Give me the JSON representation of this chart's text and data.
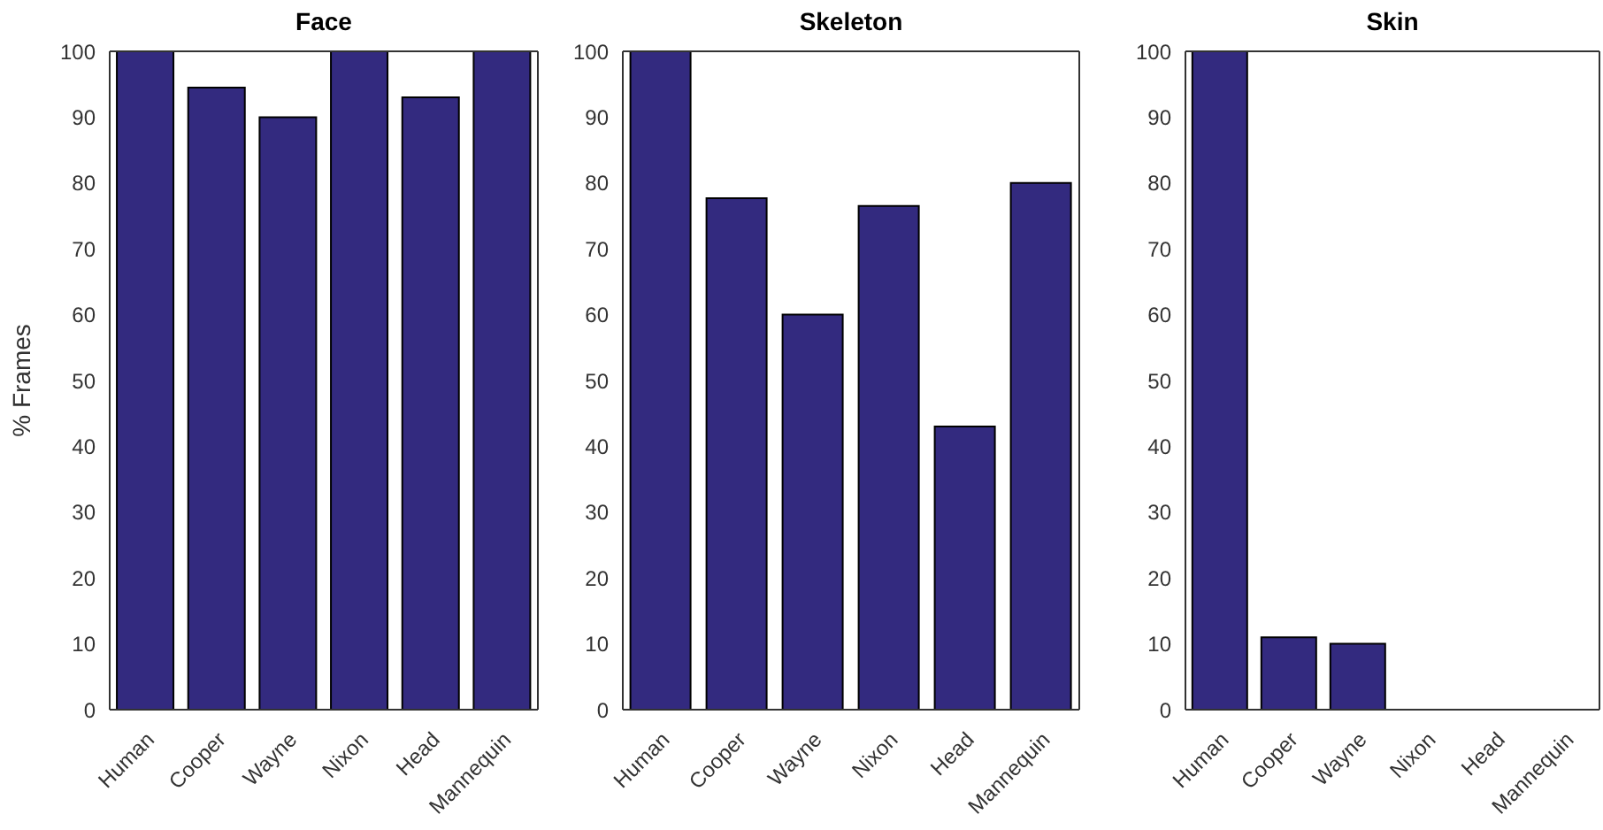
{
  "chart_data": [
    {
      "type": "bar",
      "title": "Face",
      "ylabel": "% Frames",
      "categories": [
        "Human",
        "Cooper",
        "Wayne",
        "Nixon",
        "Head",
        "Mannequin"
      ],
      "values": [
        100,
        94.5,
        90,
        100,
        93,
        100
      ],
      "color": "#332a7f",
      "ylim": [
        0,
        100
      ],
      "yticks": [
        0,
        10,
        20,
        30,
        40,
        50,
        60,
        70,
        80,
        90,
        100
      ]
    },
    {
      "type": "bar",
      "title": "Skeleton",
      "categories": [
        "Human",
        "Cooper",
        "Wayne",
        "Nixon",
        "Head",
        "Mannequin"
      ],
      "values": [
        100,
        77.7,
        60,
        76.5,
        43,
        80
      ],
      "color": "#332a7f",
      "ylim": [
        0,
        100
      ],
      "yticks": [
        0,
        10,
        20,
        30,
        40,
        50,
        60,
        70,
        80,
        90,
        100
      ]
    },
    {
      "type": "bar",
      "title": "Skin",
      "categories": [
        "Human",
        "Cooper",
        "Wayne",
        "Nixon",
        "Head",
        "Mannequin"
      ],
      "values": [
        100,
        11,
        10,
        0,
        0,
        0
      ],
      "color": "#332a7f",
      "ylim": [
        0,
        100
      ],
      "yticks": [
        0,
        10,
        20,
        30,
        40,
        50,
        60,
        70,
        80,
        90,
        100
      ]
    }
  ]
}
